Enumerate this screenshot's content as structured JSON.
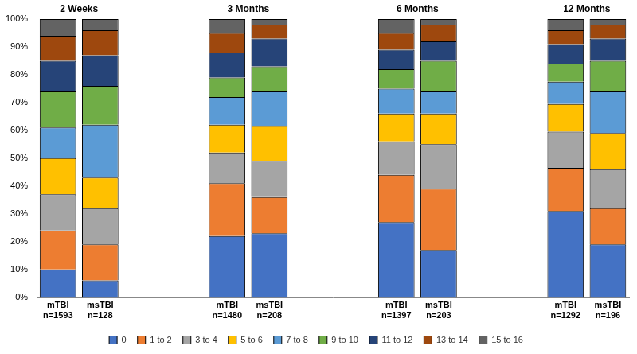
{
  "chart_data": {
    "type": "bar",
    "stacked": true,
    "grid": false,
    "legend": "bottom",
    "annotations": [
      "2 Weeks",
      "3 Months",
      "6 Months",
      "12 Months"
    ],
    "categories": [
      [
        "mTBI",
        "n=1593"
      ],
      [
        "msTBI",
        "n=128"
      ],
      null,
      null,
      [
        "mTBI",
        "n=1480"
      ],
      [
        "msTBI",
        "n=208"
      ],
      null,
      null,
      [
        "mTBI",
        "n=1397"
      ],
      [
        "msTBI",
        "n=203"
      ],
      null,
      null,
      [
        "mTBI",
        "n=1292"
      ],
      [
        "msTBI",
        "n=196"
      ]
    ],
    "ylim": [
      0,
      100
    ],
    "yticks": [
      {
        "value": 0,
        "label": "0%"
      },
      {
        "value": 10,
        "label": "10%"
      },
      {
        "value": 20,
        "label": "20%"
      },
      {
        "value": 30,
        "label": "30%"
      },
      {
        "value": 40,
        "label": "40%"
      },
      {
        "value": 50,
        "label": "50%"
      },
      {
        "value": 60,
        "label": "60%"
      },
      {
        "value": 70,
        "label": "70%"
      },
      {
        "value": 80,
        "label": "80%"
      },
      {
        "value": 90,
        "label": "90%"
      },
      {
        "value": 100,
        "label": "100%"
      }
    ],
    "series": [
      {
        "name": "0",
        "color": "#4472c4",
        "values": [
          10,
          6,
          null,
          null,
          22,
          23,
          null,
          null,
          27,
          17,
          null,
          null,
          31,
          19
        ]
      },
      {
        "name": "1 to 2",
        "color": "#ed7d31",
        "values": [
          14,
          13,
          null,
          null,
          19,
          13,
          null,
          null,
          17,
          22,
          null,
          null,
          15.5,
          13
        ]
      },
      {
        "name": "3 to 4",
        "color": "#a5a5a5",
        "values": [
          13,
          13,
          null,
          null,
          11,
          13,
          null,
          null,
          12,
          16,
          null,
          null,
          13,
          14
        ]
      },
      {
        "name": "5 to 6",
        "color": "#ffc000",
        "values": [
          13,
          11,
          null,
          null,
          10,
          12.5,
          null,
          null,
          10,
          11,
          null,
          null,
          10,
          13
        ]
      },
      {
        "name": "7 to 8",
        "color": "#5b9bd5",
        "values": [
          11,
          19,
          null,
          null,
          10,
          12.5,
          null,
          null,
          9,
          8,
          null,
          null,
          8,
          15
        ]
      },
      {
        "name": "9 to 10",
        "color": "#70ad47",
        "values": [
          13,
          14,
          null,
          null,
          7,
          9,
          null,
          null,
          7,
          11,
          null,
          null,
          6.5,
          11
        ]
      },
      {
        "name": "11 to 12",
        "color": "#264478",
        "values": [
          11,
          11,
          null,
          null,
          9,
          10,
          null,
          null,
          7,
          7,
          null,
          null,
          7,
          8
        ]
      },
      {
        "name": "13 to 14",
        "color": "#9e480e",
        "values": [
          9,
          9,
          null,
          null,
          7,
          5,
          null,
          null,
          6,
          6,
          null,
          null,
          5,
          5
        ]
      },
      {
        "name": "15 to 16",
        "color": "#636363",
        "values": [
          6,
          4,
          null,
          null,
          5,
          2,
          null,
          null,
          5,
          2,
          null,
          null,
          4,
          2
        ]
      }
    ]
  }
}
